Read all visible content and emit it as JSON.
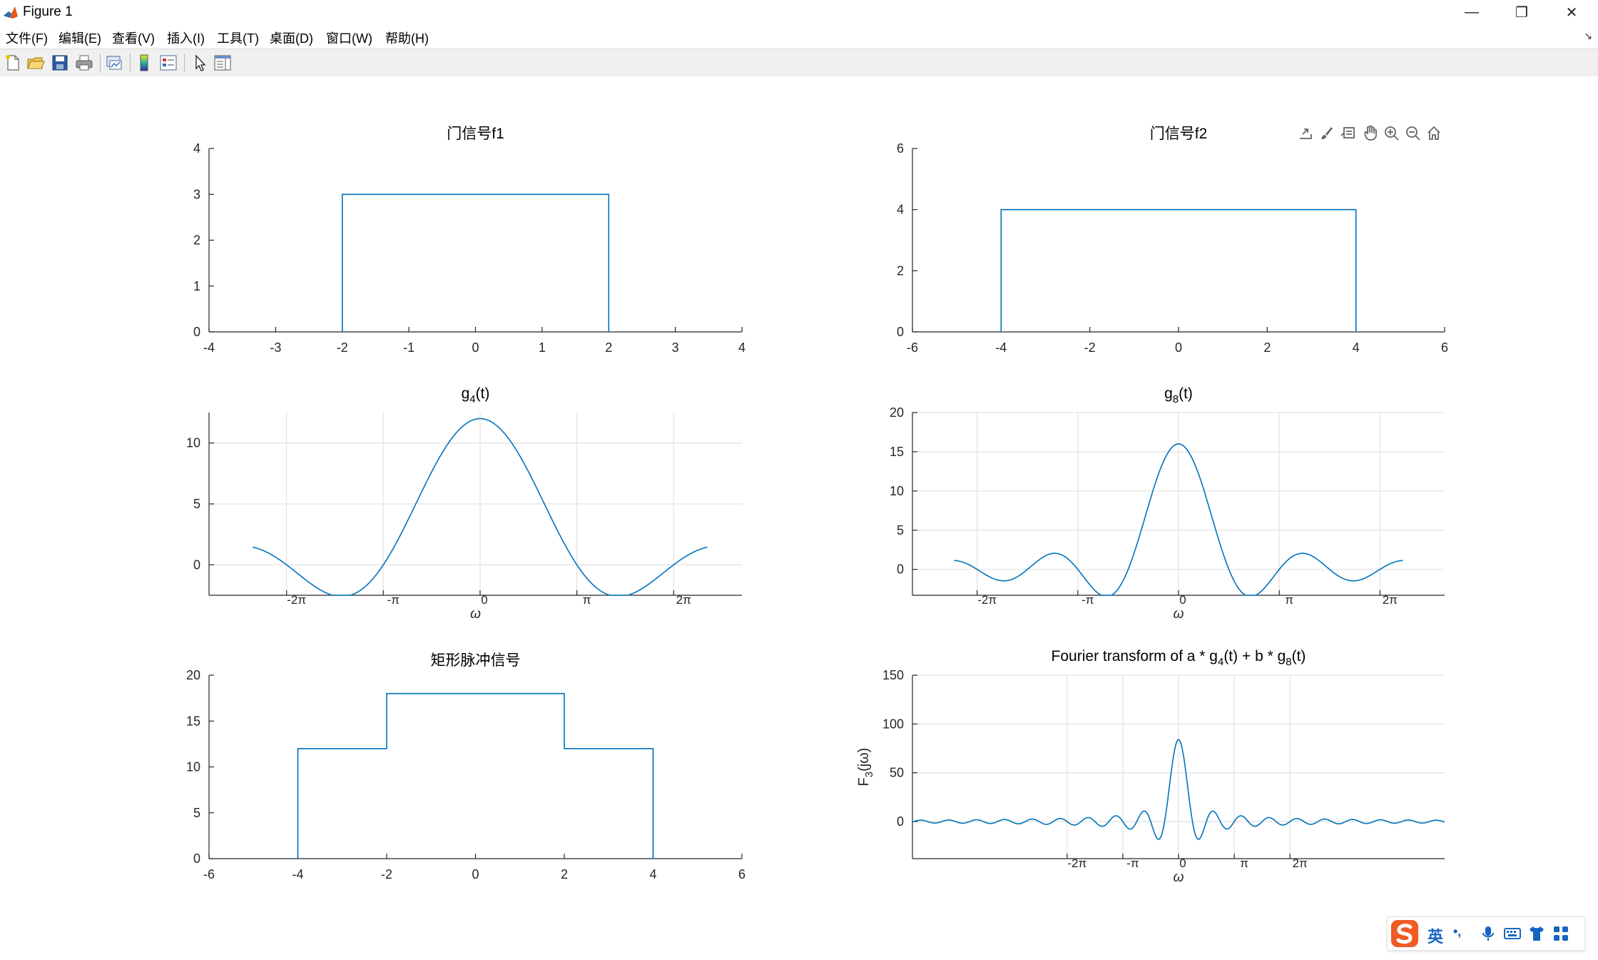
{
  "window": {
    "title": "Figure 1",
    "controls": {
      "minimize": "—",
      "restore": "❐",
      "close": "✕"
    }
  },
  "menu": {
    "items": [
      "文件(F)",
      "编辑(E)",
      "查看(V)",
      "插入(I)",
      "工具(T)",
      "桌面(D)",
      "窗口(W)",
      "帮助(H)"
    ],
    "dock_arrow": "↘"
  },
  "toolbar": {
    "buttons": [
      "new-figure-icon",
      "open-file-icon",
      "save-icon",
      "print-icon",
      "link-plot-icon",
      "colorbar-icon",
      "legend-icon",
      "edit-plot-arrow-icon",
      "property-inspector-icon"
    ]
  },
  "axes_toolbar": [
    "export-icon",
    "brush-icon",
    "datatip-icon",
    "pan-icon",
    "zoom-in-icon",
    "zoom-out-icon",
    "home-icon"
  ],
  "colors": {
    "line": "#0072BD",
    "grid": "#e4e4e4",
    "axis": "#262626"
  },
  "chart_data": [
    {
      "type": "line",
      "title": "门信号f1",
      "xlim": [
        -4,
        4
      ],
      "ylim": [
        0,
        4
      ],
      "xticks": [
        -4,
        -3,
        -2,
        -1,
        0,
        1,
        2,
        3,
        4
      ],
      "yticks": [
        0,
        1,
        2,
        3,
        4
      ],
      "grid": false,
      "series": [
        {
          "x": [
            -2,
            -2,
            2,
            2
          ],
          "y": [
            0,
            3,
            3,
            0
          ]
        }
      ]
    },
    {
      "type": "line",
      "title": "门信号f2",
      "xlim": [
        -6,
        6
      ],
      "ylim": [
        0,
        6
      ],
      "xticks": [
        -6,
        -4,
        -2,
        0,
        2,
        4,
        6
      ],
      "yticks": [
        0,
        2,
        4,
        6
      ],
      "grid": false,
      "series": [
        {
          "x": [
            -4,
            -4,
            4,
            4
          ],
          "y": [
            0,
            4,
            4,
            0
          ]
        }
      ]
    },
    {
      "type": "line",
      "title": "g4(t)",
      "title_base": "g",
      "title_sub": "4",
      "title_rest": "(t)",
      "xlabel": "ω",
      "xlim": [
        -8.8,
        8.5
      ],
      "ylim": [
        -2.5,
        12.5
      ],
      "xtick_labels": [
        "-2π",
        "-π",
        "0",
        "π",
        "2π"
      ],
      "yticks": [
        0,
        5,
        10
      ],
      "grid": true,
      "func": {
        "amp": 3,
        "width": 4,
        "from": -7.38,
        "to": 7.38
      }
    },
    {
      "type": "line",
      "title": "g8(t)",
      "title_base": "g",
      "title_sub": "8",
      "title_rest": "(t)",
      "xlabel": "ω",
      "xlim": [
        -8.3,
        8.3
      ],
      "ylim": [
        -3.3,
        20
      ],
      "xtick_labels": [
        "-2π",
        "-π",
        "π",
        "0",
        "2π"
      ],
      "yticks": [
        0,
        5,
        10,
        15,
        20
      ],
      "grid": true,
      "func": {
        "amp": 2,
        "width": 8,
        "from": -7.0,
        "to": 7.0
      }
    },
    {
      "type": "line",
      "title": "矩形脉冲信号",
      "xlim": [
        -6,
        6
      ],
      "ylim": [
        0,
        20
      ],
      "xticks": [
        -6,
        -4,
        -2,
        0,
        2,
        4,
        6
      ],
      "yticks": [
        0,
        5,
        10,
        15,
        20
      ],
      "grid": false,
      "series": [
        {
          "x": [
            -4,
            -4,
            -2,
            -2,
            2,
            2,
            4,
            4
          ],
          "y": [
            0,
            12,
            12,
            18,
            18,
            12,
            12,
            0
          ]
        }
      ]
    },
    {
      "type": "line",
      "title": "Fourier transform of a * g4(t) + b * g8(t)",
      "title_parts": [
        "Fourier transform of a * g",
        "4",
        "(t) + b * g",
        "8",
        "(t)"
      ],
      "xlabel": "ω",
      "ylabel": "F3(jω)",
      "ylabel_parts": [
        "F",
        "3",
        "(jω)"
      ],
      "xlim": [
        -15,
        15
      ],
      "ylim": [
        -38,
        150
      ],
      "xtick_labels": [
        "-2π",
        "-π",
        "π",
        "0",
        "2π"
      ],
      "yticks": [
        0,
        50,
        100,
        150
      ],
      "grid": true,
      "func": {
        "amp_a": 3,
        "width_a": 4,
        "amp_b": 2,
        "width_b": 8,
        "scale": 0.5,
        "from": -15,
        "to": 15
      }
    }
  ],
  "ime": {
    "lang": "英",
    "punct": "•,"
  }
}
